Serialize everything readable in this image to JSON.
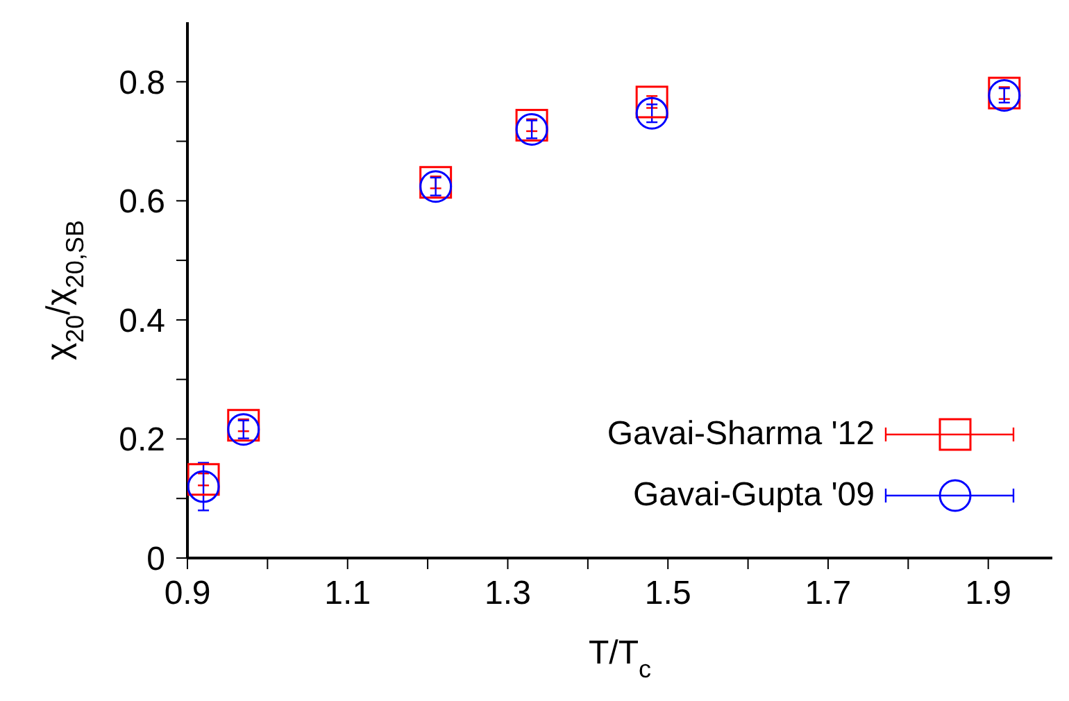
{
  "chart_data": {
    "type": "scatter",
    "xlabel": "T/T$_{c}$",
    "ylabel": "χ$_{20}$/χ$_{20,SB}$",
    "xlim": [
      0.9,
      1.98
    ],
    "xticks": [
      0.9,
      {
        "value": 1.0,
        "label": null
      },
      1.1,
      {
        "value": 1.2,
        "label": null
      },
      1.3,
      {
        "value": 1.4,
        "label": null
      },
      1.5,
      {
        "value": 1.6,
        "label": null
      },
      1.7,
      {
        "value": 1.8,
        "label": null
      },
      1.9
    ],
    "ylim": [
      0,
      0.9
    ],
    "yticks": [
      0,
      {
        "value": 0.1,
        "label": null
      },
      0.2,
      {
        "value": 0.3,
        "label": null
      },
      0.4,
      {
        "value": 0.5,
        "label": null
      },
      0.6,
      {
        "value": 0.7,
        "label": null
      },
      0.8
    ],
    "legend": "bottom right",
    "series": [
      {
        "name": "Gavai-Sharma '12",
        "color": "#ff0000",
        "marker": "square",
        "x": [
          0.92,
          0.97,
          1.21,
          1.33,
          1.48,
          1.92
        ],
        "values": [
          0.132,
          0.223,
          0.631,
          0.727,
          0.766,
          0.781
        ],
        "errors": [
          0.01,
          0.01,
          0.01,
          0.01,
          0.01,
          0.01
        ]
      },
      {
        "name": "Gavai-Gupta '09",
        "color": "#0000ff",
        "marker": "circle",
        "x": [
          0.92,
          0.97,
          1.21,
          1.33,
          1.48,
          1.92
        ],
        "values": [
          0.12,
          0.216,
          0.624,
          0.72,
          0.747,
          0.777
        ],
        "errors": [
          0.04,
          0.015,
          0.015,
          0.015,
          0.015,
          0.012
        ]
      }
    ]
  }
}
